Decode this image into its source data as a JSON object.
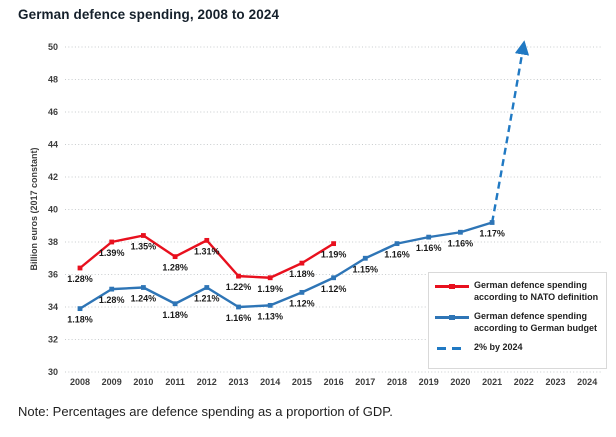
{
  "title": "German defence spending, 2008 to 2024",
  "note": "Note: Percentages are defence spending as a proportion of GDP.",
  "colors": {
    "nato": "#e8101e",
    "budget": "#2e75b6",
    "projection": "#2079c3",
    "grid": "#c8ccce",
    "axis_text": "#3d3d3d",
    "label_text": "#1a1a1a",
    "legend_border": "#d9d9d9"
  },
  "chart_data": {
    "type": "line",
    "title": "German defence spending, 2008 to 2024",
    "xlabel": "",
    "ylabel": "Billion euros (2017 constant)",
    "ylim": [
      30,
      50
    ],
    "yticks": [
      30,
      32,
      34,
      36,
      38,
      40,
      42,
      44,
      46,
      48,
      50
    ],
    "xticks": [
      2008,
      2009,
      2010,
      2011,
      2012,
      2013,
      2014,
      2015,
      2016,
      2017,
      2018,
      2019,
      2020,
      2021,
      2022,
      2023,
      2024
    ],
    "grid": "horizontal dotted",
    "legend_position": "bottom-right boxed",
    "series": [
      {
        "name": "German defence spending according to NATO definition",
        "color_key": "nato",
        "style": "solid",
        "marker": "square",
        "x": [
          2008,
          2009,
          2010,
          2011,
          2012,
          2013,
          2014,
          2015,
          2016
        ],
        "values": [
          36.4,
          38.0,
          38.4,
          37.1,
          38.1,
          35.9,
          35.8,
          36.7,
          37.9
        ],
        "point_labels": [
          "1.28%",
          "1.39%",
          "1.35%",
          "1.28%",
          "1.31%",
          "1.22%",
          "1.19%",
          "1.18%",
          "1.19%"
        ]
      },
      {
        "name": "German defence spending according to German budget",
        "color_key": "budget",
        "style": "solid",
        "marker": "square",
        "x": [
          2008,
          2009,
          2010,
          2011,
          2012,
          2013,
          2014,
          2015,
          2016,
          2017,
          2018,
          2019,
          2020,
          2021
        ],
        "values": [
          33.9,
          35.1,
          35.2,
          34.2,
          35.2,
          34.0,
          34.1,
          34.9,
          35.8,
          37.0,
          37.9,
          38.3,
          38.6,
          39.2
        ],
        "point_labels": [
          "1.18%",
          "1.28%",
          "1.24%",
          "1.18%",
          "1.21%",
          "1.16%",
          "1.13%",
          "1.12%",
          "1.12%",
          "1.15%",
          "1.16%",
          "1.16%",
          "1.16%",
          "1.17%"
        ]
      }
    ],
    "projection": {
      "name": "2% by 2024",
      "color_key": "projection",
      "style": "dashed with up arrow",
      "points": [
        {
          "year": 2021,
          "value": 39.2
        },
        {
          "year": 2021.5,
          "value": 44.5
        },
        {
          "year": 2022,
          "value": 50.2
        }
      ]
    },
    "legend": [
      {
        "label_lines": [
          "German defence spending",
          "according to NATO definition"
        ]
      },
      {
        "label_lines": [
          "German defence spending",
          "according to German budget"
        ]
      },
      {
        "label_lines": [
          "2% by 2024"
        ]
      }
    ]
  }
}
